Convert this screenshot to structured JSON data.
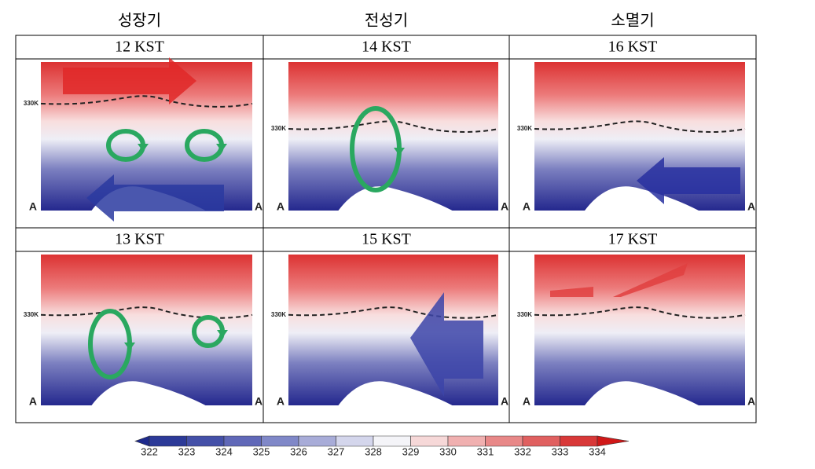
{
  "columns": [
    "성장기",
    "전성기",
    "소멸기"
  ],
  "rows": [
    [
      "12 KST",
      "14 KST",
      "16 KST"
    ],
    [
      "13 KST",
      "15 KST",
      "17 KST"
    ]
  ],
  "panel_labels": {
    "isentrope": "330K",
    "section_start": "A",
    "section_end": "A"
  },
  "colorbar": {
    "labels": [
      "322",
      "323",
      "324",
      "325",
      "326",
      "327",
      "328",
      "329",
      "330",
      "331",
      "332",
      "333",
      "334"
    ],
    "colors": [
      "#1e2a8c",
      "#2c3a98",
      "#4450a8",
      "#6068b8",
      "#8088c8",
      "#a8acd8",
      "#d4d6ec",
      "#f4f4f8",
      "#f6d8d8",
      "#f0b0b0",
      "#e88888",
      "#e06060",
      "#d83838",
      "#d01818"
    ]
  }
}
